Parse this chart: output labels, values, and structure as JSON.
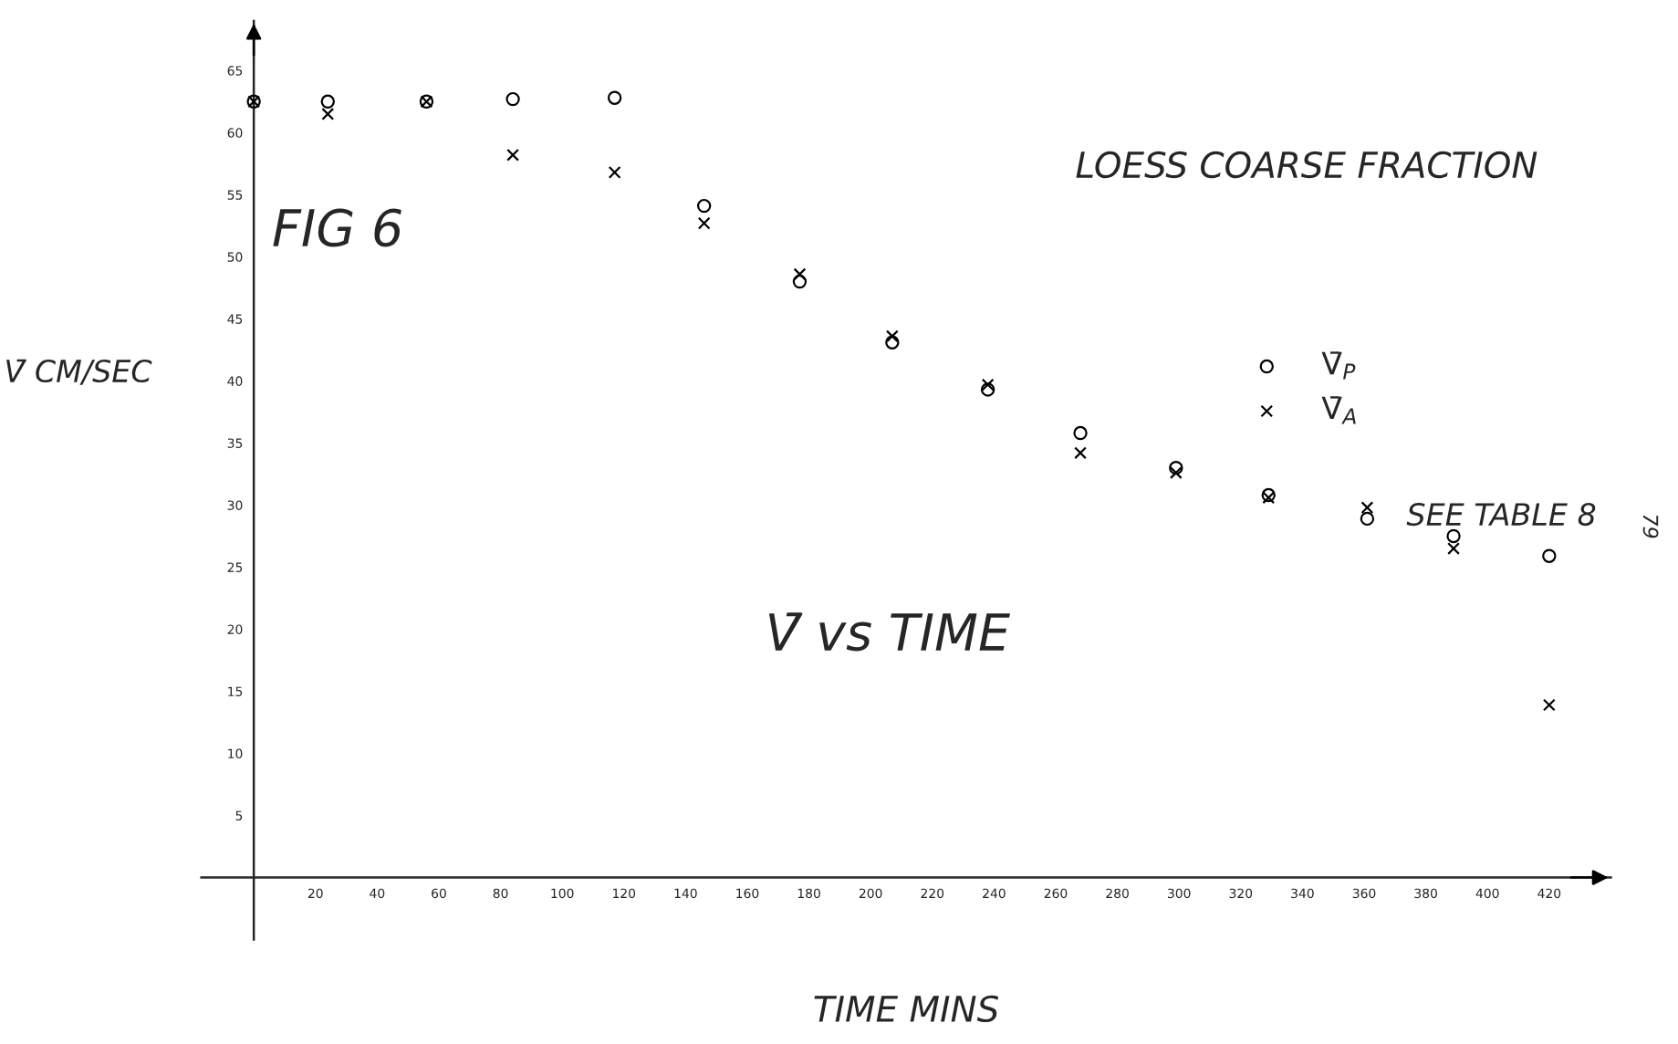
{
  "chart_data": {
    "type": "scatter",
    "xlabel": "TIME MINS",
    "ylabel": "V̄ CM/SEC",
    "x": [
      0,
      24,
      56,
      84,
      117,
      146,
      177,
      207,
      238,
      268,
      299,
      329,
      361,
      389,
      420
    ],
    "series": [
      {
        "name": "V̄$_{P}$",
        "color": "#000000",
        "marker": "circle",
        "values": [
          62.5,
          62.5,
          62.5,
          62.7,
          62.8,
          54.1,
          48.0,
          43.1,
          39.3,
          35.8,
          33.0,
          30.8,
          28.9,
          27.5,
          25.9
        ]
      },
      {
        "name": "V̄$_{A}$",
        "color": "#000000",
        "marker": "cross",
        "values": [
          62.5,
          61.5,
          62.5,
          58.2,
          56.8,
          52.7,
          48.6,
          43.6,
          39.7,
          34.2,
          32.6,
          30.6,
          29.8,
          26.5,
          13.9
        ]
      }
    ],
    "xlim": [
      -17,
      440
    ],
    "ylim": [
      -5,
      69
    ],
    "xticks": [
      20,
      40,
      60,
      80,
      100,
      120,
      140,
      160,
      180,
      200,
      220,
      240,
      260,
      280,
      300,
      320,
      340,
      360,
      380,
      400,
      420
    ],
    "yticks": [
      5,
      10,
      15,
      20,
      25,
      30,
      35,
      40,
      45,
      50,
      55,
      60,
      65
    ],
    "grid": false,
    "legend": "right",
    "annotations": [
      "FIG 6",
      "LOESS COARSE FRACTION",
      "V̄ vs TIME",
      "SEE TABLE 8",
      "79"
    ]
  }
}
